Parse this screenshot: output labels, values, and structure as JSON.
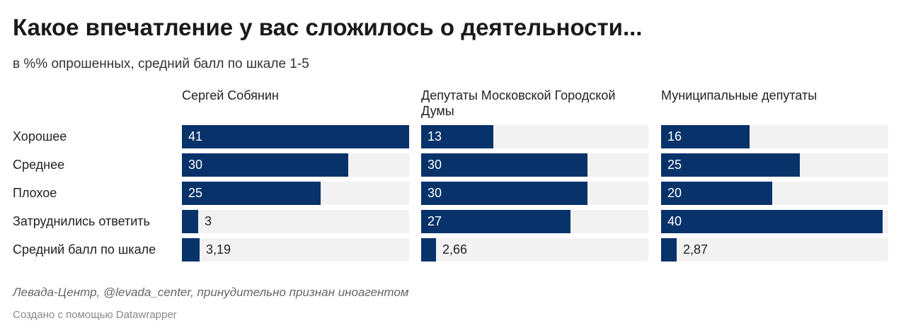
{
  "chart_data": {
    "type": "bar",
    "title": "Какое впечатление у вас сложилось о деятельности...",
    "subtitle": "в %% опрошенных, средний балл по шкале 1-5",
    "categories": [
      "Хорошее",
      "Среднее",
      "Плохое",
      "Затруднились ответить",
      "Средний балл по шкале"
    ],
    "series": [
      {
        "name": "Сергей Собянин",
        "values": [
          41,
          30,
          25,
          3,
          3.19
        ],
        "labels": [
          "41",
          "30",
          "25",
          "3",
          "3,19"
        ]
      },
      {
        "name": "Депутаты Московской Городской Думы",
        "values": [
          13,
          30,
          30,
          27,
          2.66
        ],
        "labels": [
          "13",
          "30",
          "30",
          "27",
          "2,66"
        ]
      },
      {
        "name": "Муниципальные депутаты",
        "values": [
          16,
          25,
          20,
          40,
          2.87
        ],
        "labels": [
          "16",
          "25",
          "20",
          "40",
          "2,87"
        ]
      }
    ],
    "xlim": [
      0,
      41
    ],
    "bar_color": "#08326a",
    "track_color": "#f2f2f2"
  },
  "footer": {
    "source": "Левада-Центр, @levada_center, принудительно признан иноагентом",
    "credit": "Создано с помощью Datawrapper"
  }
}
